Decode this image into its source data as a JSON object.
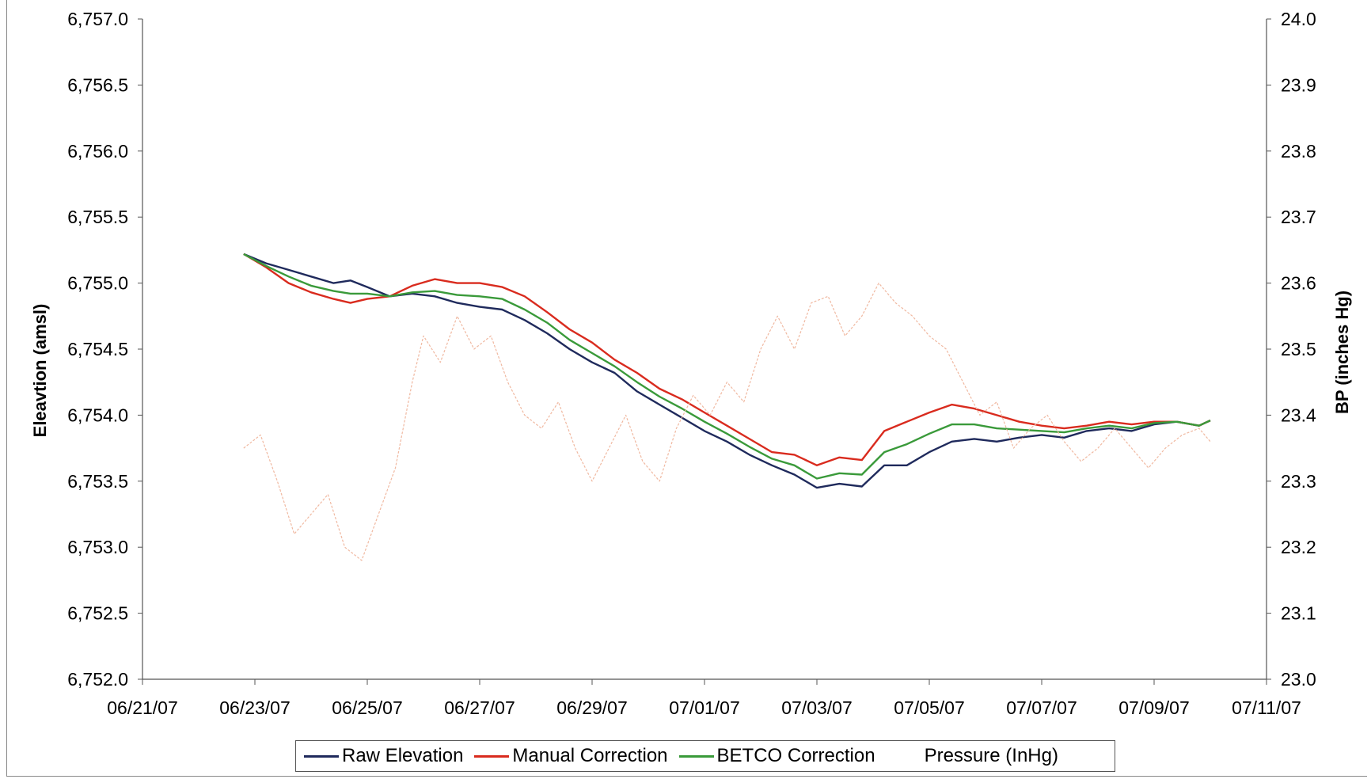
{
  "chart_data": {
    "type": "line",
    "xlabel": "",
    "ylabel": "Eleavtion (amsl)",
    "y2label": "BP (inches Hg)",
    "x_ticks": [
      "06/21/07",
      "06/23/07",
      "06/25/07",
      "06/27/07",
      "06/29/07",
      "07/01/07",
      "07/03/07",
      "07/05/07",
      "07/07/07",
      "07/09/07",
      "07/11/07"
    ],
    "y_ticks": [
      "6,757.0",
      "6,756.5",
      "6,756.0",
      "6,755.5",
      "6,755.0",
      "6,754.5",
      "6,754.0",
      "6,753.5",
      "6,753.0",
      "6,752.5",
      "6,752.0"
    ],
    "y2_ticks": [
      "24.0",
      "23.9",
      "23.8",
      "23.7",
      "23.6",
      "23.5",
      "23.4",
      "23.3",
      "23.2",
      "23.1",
      "23.0"
    ],
    "xlim": [
      0,
      20
    ],
    "ylim": [
      6752.0,
      6757.0
    ],
    "y2lim": [
      23.0,
      24.0
    ],
    "x_units": "days since 06/21/07",
    "series": [
      {
        "name": "Raw Elevation",
        "axis": "left",
        "color": "#1f2a5c",
        "x": [
          1.8,
          2.2,
          2.6,
          3.0,
          3.4,
          3.7,
          4.0,
          4.4,
          4.8,
          5.2,
          5.6,
          6.0,
          6.4,
          6.8,
          7.2,
          7.6,
          8.0,
          8.4,
          8.8,
          9.2,
          9.6,
          10.0,
          10.4,
          10.8,
          11.2,
          11.6,
          12.0,
          12.4,
          12.8,
          13.2,
          13.6,
          14.0,
          14.4,
          14.8,
          15.2,
          15.6,
          16.0,
          16.4,
          16.8,
          17.2,
          17.6,
          18.0,
          18.4,
          18.8,
          19.0
        ],
        "y": [
          6755.22,
          6755.15,
          6755.1,
          6755.05,
          6755.0,
          6755.02,
          6754.97,
          6754.9,
          6754.92,
          6754.9,
          6754.85,
          6754.82,
          6754.8,
          6754.72,
          6754.62,
          6754.5,
          6754.4,
          6754.32,
          6754.18,
          6754.08,
          6753.98,
          6753.88,
          6753.8,
          6753.7,
          6753.62,
          6753.55,
          6753.45,
          6753.48,
          6753.46,
          6753.62,
          6753.62,
          6753.72,
          6753.8,
          6753.82,
          6753.8,
          6753.83,
          6753.85,
          6753.83,
          6753.88,
          6753.9,
          6753.88,
          6753.93,
          6753.95,
          6753.92,
          6753.96
        ]
      },
      {
        "name": "Manual Correction",
        "axis": "left",
        "color": "#d92b1e",
        "x": [
          1.8,
          2.2,
          2.6,
          3.0,
          3.4,
          3.7,
          4.0,
          4.4,
          4.8,
          5.2,
          5.6,
          6.0,
          6.4,
          6.8,
          7.2,
          7.6,
          8.0,
          8.4,
          8.8,
          9.2,
          9.6,
          10.0,
          10.4,
          10.8,
          11.2,
          11.6,
          12.0,
          12.4,
          12.8,
          13.2,
          13.6,
          14.0,
          14.4,
          14.8,
          15.2,
          15.6,
          16.0,
          16.4,
          16.8,
          17.2,
          17.6,
          18.0,
          18.4,
          18.8,
          19.0
        ],
        "y": [
          6755.22,
          6755.12,
          6755.0,
          6754.93,
          6754.88,
          6754.85,
          6754.88,
          6754.9,
          6754.98,
          6755.03,
          6755.0,
          6755.0,
          6754.97,
          6754.9,
          6754.78,
          6754.65,
          6754.55,
          6754.42,
          6754.32,
          6754.2,
          6754.12,
          6754.02,
          6753.92,
          6753.82,
          6753.72,
          6753.7,
          6753.62,
          6753.68,
          6753.66,
          6753.88,
          6753.95,
          6754.02,
          6754.08,
          6754.05,
          6754.0,
          6753.95,
          6753.92,
          6753.9,
          6753.92,
          6753.95,
          6753.93,
          6753.95,
          6753.95,
          6753.92,
          6753.96
        ]
      },
      {
        "name": "BETCO Correction",
        "axis": "left",
        "color": "#3a9a3a",
        "x": [
          1.8,
          2.2,
          2.6,
          3.0,
          3.4,
          3.7,
          4.0,
          4.4,
          4.8,
          5.2,
          5.6,
          6.0,
          6.4,
          6.8,
          7.2,
          7.6,
          8.0,
          8.4,
          8.8,
          9.2,
          9.6,
          10.0,
          10.4,
          10.8,
          11.2,
          11.6,
          12.0,
          12.4,
          12.8,
          13.2,
          13.6,
          14.0,
          14.4,
          14.8,
          15.2,
          15.6,
          16.0,
          16.4,
          16.8,
          17.2,
          17.6,
          18.0,
          18.4,
          18.8,
          19.0
        ],
        "y": [
          6755.22,
          6755.13,
          6755.05,
          6754.98,
          6754.94,
          6754.92,
          6754.92,
          6754.9,
          6754.93,
          6754.94,
          6754.91,
          6754.9,
          6754.88,
          6754.8,
          6754.7,
          6754.57,
          6754.47,
          6754.37,
          6754.25,
          6754.14,
          6754.05,
          6753.95,
          6753.86,
          6753.76,
          6753.67,
          6753.62,
          6753.52,
          6753.56,
          6753.55,
          6753.72,
          6753.78,
          6753.86,
          6753.93,
          6753.93,
          6753.9,
          6753.89,
          6753.88,
          6753.87,
          6753.9,
          6753.92,
          6753.9,
          6753.94,
          6753.95,
          6753.92,
          6753.96
        ]
      },
      {
        "name": "Pressure (InHg)",
        "axis": "right",
        "color": "#f0b8a0",
        "x": [
          1.8,
          2.1,
          2.4,
          2.7,
          3.0,
          3.3,
          3.6,
          3.9,
          4.2,
          4.5,
          4.8,
          5.0,
          5.3,
          5.6,
          5.9,
          6.2,
          6.5,
          6.8,
          7.1,
          7.4,
          7.7,
          8.0,
          8.3,
          8.6,
          8.9,
          9.2,
          9.5,
          9.8,
          10.1,
          10.4,
          10.7,
          11.0,
          11.3,
          11.6,
          11.9,
          12.2,
          12.5,
          12.8,
          13.1,
          13.4,
          13.7,
          14.0,
          14.3,
          14.6,
          14.9,
          15.2,
          15.5,
          15.8,
          16.1,
          16.4,
          16.7,
          17.0,
          17.3,
          17.6,
          17.9,
          18.2,
          18.5,
          18.8,
          19.0
        ],
        "y": [
          23.35,
          23.37,
          23.3,
          23.22,
          23.25,
          23.28,
          23.2,
          23.18,
          23.25,
          23.32,
          23.45,
          23.52,
          23.48,
          23.55,
          23.5,
          23.52,
          23.45,
          23.4,
          23.38,
          23.42,
          23.35,
          23.3,
          23.35,
          23.4,
          23.33,
          23.3,
          23.38,
          23.43,
          23.4,
          23.45,
          23.42,
          23.5,
          23.55,
          23.5,
          23.57,
          23.58,
          23.52,
          23.55,
          23.6,
          23.57,
          23.55,
          23.52,
          23.5,
          23.45,
          23.4,
          23.42,
          23.35,
          23.38,
          23.4,
          23.36,
          23.33,
          23.35,
          23.38,
          23.35,
          23.32,
          23.35,
          23.37,
          23.38,
          23.36
        ]
      }
    ],
    "grid": false,
    "legend_position": "bottom"
  },
  "legend": {
    "items": [
      {
        "label": "Raw Elevation",
        "color": "#1f2a5c"
      },
      {
        "label": "Manual Correction",
        "color": "#d92b1e"
      },
      {
        "label": "BETCO Correction",
        "color": "#3a9a3a"
      },
      {
        "label": "Pressure (InHg)",
        "color": "#ffffff"
      }
    ]
  }
}
